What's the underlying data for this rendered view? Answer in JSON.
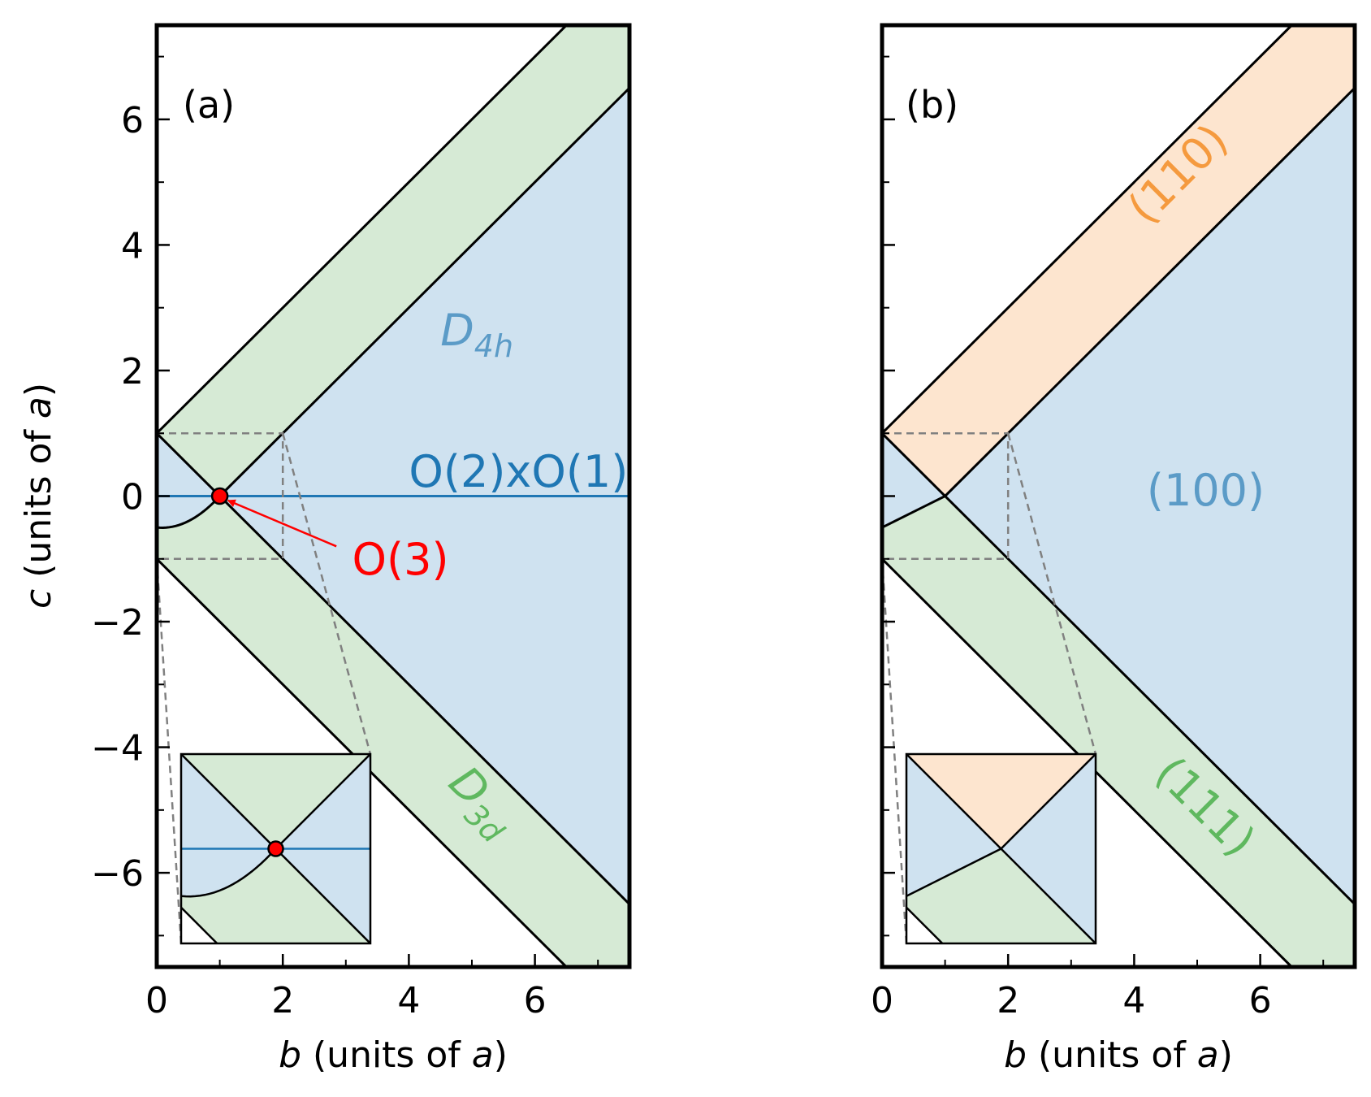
{
  "chart_data": [
    {
      "type": "area",
      "panel_label": "(a)",
      "xlabel": {
        "var": "b",
        "rest_a": " (units of ",
        "var2": "a",
        "rest_b": ")"
      },
      "ylabel": {
        "var": "c",
        "rest_a": " (units of ",
        "var2": "a",
        "rest_b": ")"
      },
      "xlim": [
        0,
        7.5
      ],
      "ylim": [
        -7.5,
        7.5
      ],
      "xticks": [
        0,
        2,
        4,
        6
      ],
      "yticks": [
        -6,
        -4,
        -2,
        0,
        2,
        4,
        6
      ],
      "region_labels": [
        {
          "text": "D",
          "sub": "4h",
          "italic": true,
          "color": "#5b9bc7",
          "x": 5.1,
          "y": 2.4,
          "angle": 0
        },
        {
          "text": "D",
          "sub": "3d",
          "italic": true,
          "color": "#5fb85f",
          "x": 5.6,
          "y": -5.4,
          "angle": 45
        }
      ],
      "line_label": {
        "text": "O(2)xO(1)",
        "color": "#1f77b4",
        "x": 4.0,
        "y": 0.15
      },
      "point_label": {
        "text": "O(3)",
        "color": "#ff0000",
        "x": 3.1,
        "y": -1.25
      },
      "critical_point": {
        "b": 1,
        "c": 0,
        "color": "#ff0000"
      },
      "region_colors": {
        "blue": "#cfe2f0",
        "green": "#d6ead5",
        "orange": "#fde5cf"
      }
    },
    {
      "type": "area",
      "panel_label": "(b)",
      "xlabel": {
        "var": "b",
        "rest_a": " (units of ",
        "var2": "a",
        "rest_b": ")"
      },
      "xlim": [
        0,
        7.5
      ],
      "ylim": [
        -7.5,
        7.5
      ],
      "xticks": [
        0,
        2,
        4,
        6
      ],
      "region_labels": [
        {
          "text": "(110)",
          "color": "#f59a3e",
          "x": 5.1,
          "y": 5.1,
          "angle": -45
        },
        {
          "text": "(100)",
          "color": "#5b9bc7",
          "x": 4.8,
          "y": 0.25,
          "angle": 0
        },
        {
          "text": "(111)",
          "color": "#5fb85f",
          "x": 5.4,
          "y": -5.1,
          "angle": 45
        }
      ],
      "region_colors": {
        "blue": "#cfe2f0",
        "green": "#d6ead5",
        "orange": "#fde5cf"
      }
    }
  ]
}
